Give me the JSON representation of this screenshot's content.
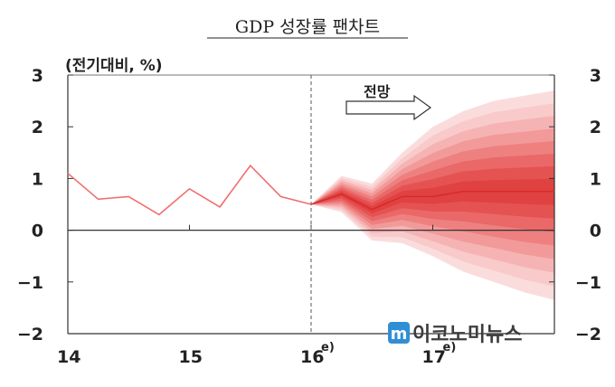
{
  "chart_data": {
    "type": "area",
    "title": "GDP 성장률 팬차트",
    "unit_label": "(전기대비, %)",
    "ylim": [
      -2,
      3
    ],
    "yticks": [
      -2,
      -1,
      0,
      1,
      2,
      3
    ],
    "ytick_labels": [
      "−2",
      "−1",
      "0",
      "1",
      "2",
      "3"
    ],
    "xlim": [
      0,
      16
    ],
    "xticks": [
      {
        "x": 0,
        "label": "14",
        "sup": ""
      },
      {
        "x": 4,
        "label": "15",
        "sup": ""
      },
      {
        "x": 8,
        "label": "16",
        "sup": "e)"
      },
      {
        "x": 12,
        "label": "17",
        "sup": "e)"
      }
    ],
    "forecast_start": 8,
    "annotation": "전망",
    "actual": {
      "x": [
        0,
        1,
        2,
        3,
        4,
        5,
        6,
        7,
        8
      ],
      "y": [
        1.1,
        0.6,
        0.65,
        0.3,
        0.8,
        0.45,
        1.25,
        0.65,
        0.5
      ]
    },
    "forecast": {
      "x": [
        8,
        9,
        10,
        11,
        12,
        13,
        14,
        15,
        16
      ],
      "central": [
        0.5,
        0.7,
        0.4,
        0.65,
        0.65,
        0.75,
        0.75,
        0.75,
        0.75
      ],
      "upper": [
        0.5,
        1.05,
        0.9,
        1.5,
        2.0,
        2.3,
        2.5,
        2.6,
        2.7
      ],
      "lower": [
        0.5,
        0.35,
        -0.2,
        -0.25,
        -0.5,
        -0.8,
        -1.0,
        -1.2,
        -1.35
      ],
      "band_colors": [
        "#fbdcdc",
        "#f9caca",
        "#f6b3b3",
        "#f29a9a",
        "#ee8080",
        "#ea6868",
        "#e55252",
        "#e04141"
      ]
    },
    "line_color": "#f06e6e",
    "grid": false,
    "legend": "none"
  },
  "watermark": {
    "text": "이코노미뉴스",
    "logo_letter": "m",
    "logo_color": "#2f8fd6"
  }
}
